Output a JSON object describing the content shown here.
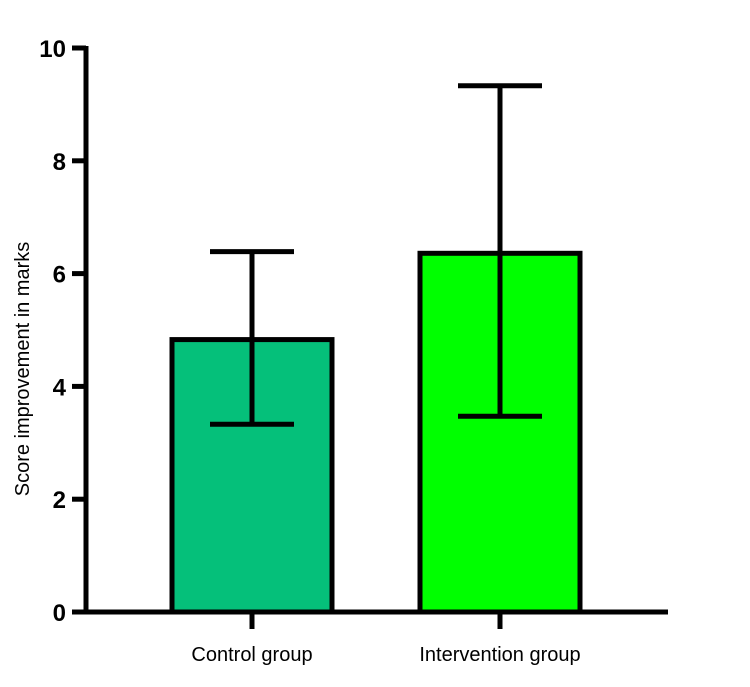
{
  "chart_data": {
    "type": "bar",
    "title": "",
    "xlabel": "",
    "ylabel": "Score improvement in marks",
    "ylim": [
      0,
      10
    ],
    "yticks": [
      0,
      2,
      4,
      6,
      8,
      10
    ],
    "grid": false,
    "legend": "none",
    "categories": [
      "Control group",
      "Intervention group"
    ],
    "values": [
      4.83,
      6.36
    ],
    "error_upper": [
      6.39,
      9.33
    ],
    "error_lower": [
      3.33,
      3.47
    ],
    "colors": [
      "#05c07a",
      "#00ff00"
    ]
  }
}
